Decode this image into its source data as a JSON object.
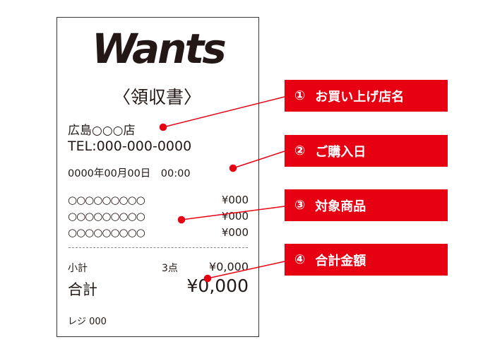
{
  "receipt": {
    "logo": "Wants",
    "title": "〈領収書〉",
    "store": "広島○○○店",
    "tel": "TEL:000-000-0000",
    "datetime": "0000年00月00日　00:00",
    "items": [
      {
        "name": "○○○○○○○○○",
        "price": "¥000"
      },
      {
        "name": "○○○○○○○○○",
        "price": "¥000"
      },
      {
        "name": "○○○○○○○○○",
        "price": "¥000"
      }
    ],
    "subtotal_label": "小計",
    "subtotal_qty": "3点",
    "subtotal_value": "¥0,000",
    "total_label": "合計",
    "total_value": "¥0,000",
    "register": "レジ 000"
  },
  "callouts": [
    {
      "num": "①",
      "text": "お買い上げ店名"
    },
    {
      "num": "②",
      "text": "ご購入日"
    },
    {
      "num": "③",
      "text": "対象商品"
    },
    {
      "num": "④",
      "text": "合計金額"
    }
  ],
  "colors": {
    "accent": "#e60012",
    "text": "#231815"
  }
}
